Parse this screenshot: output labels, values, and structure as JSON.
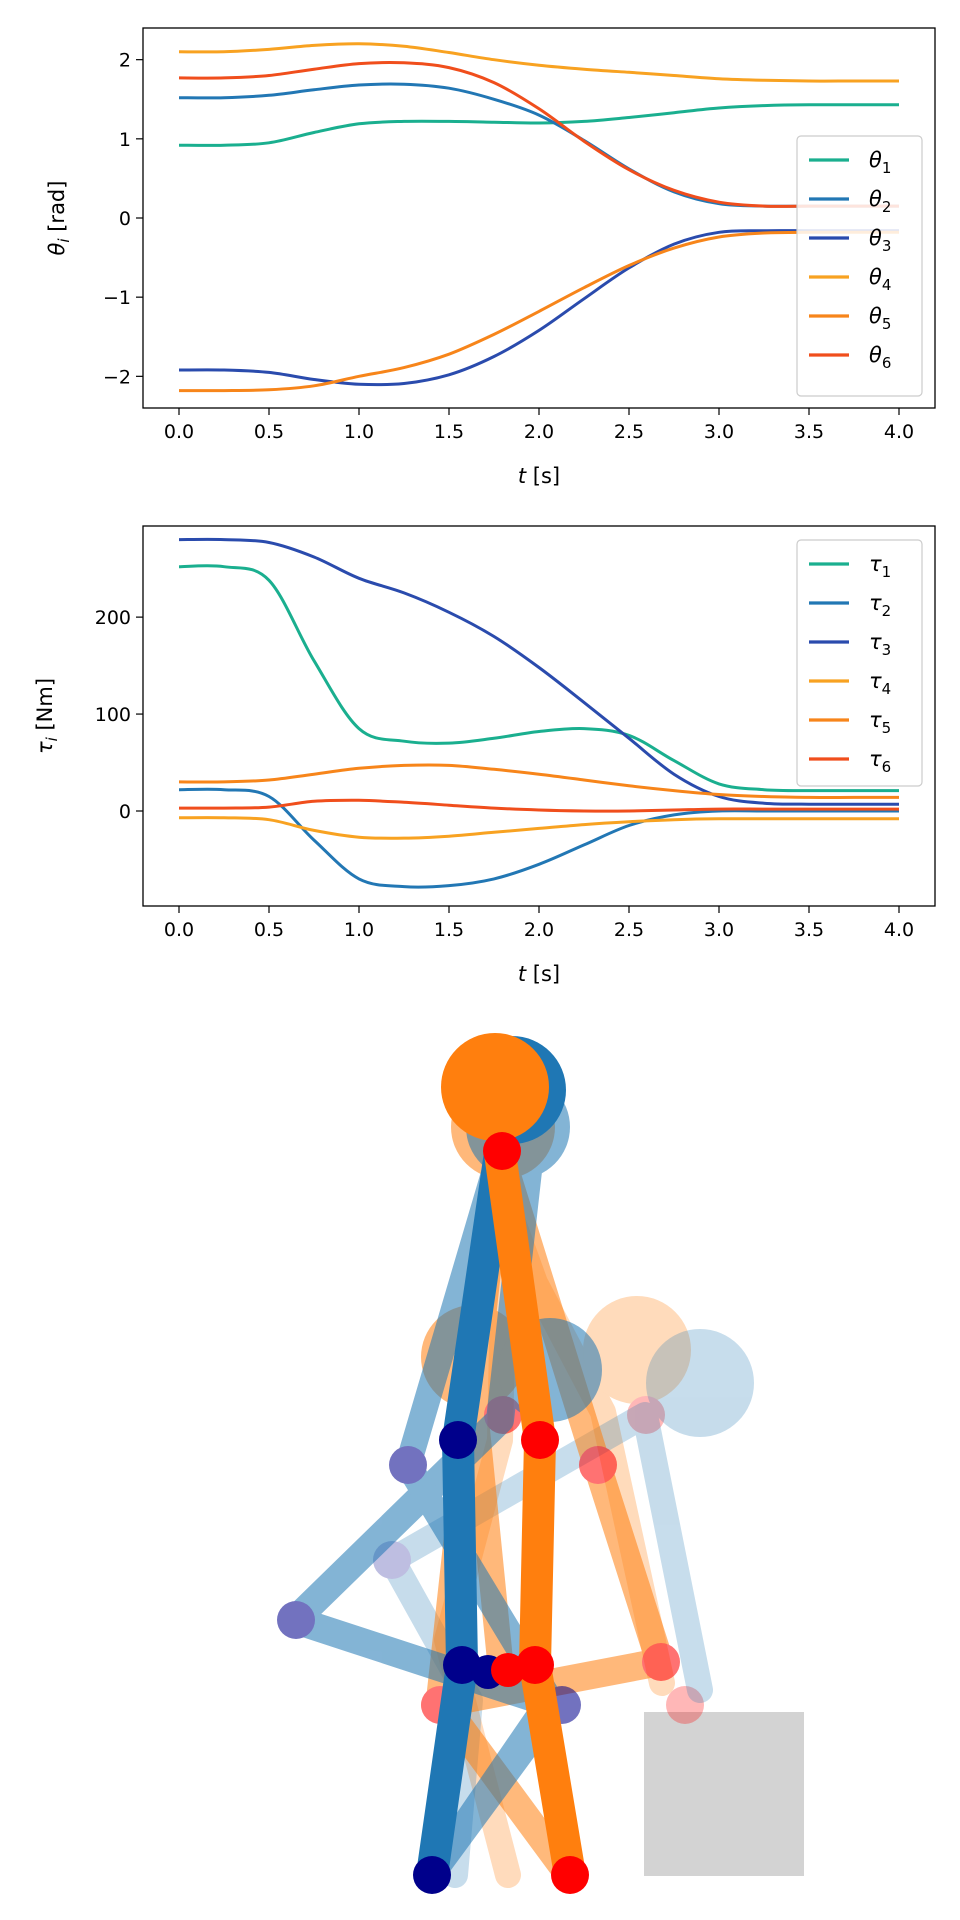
{
  "chart_data": [
    {
      "type": "line",
      "xlabel_var": "t",
      "xlabel_unit": " [s]",
      "ylabel_var": "θ",
      "ylabel_sub": "i",
      "ylabel_unit": " [rad]",
      "xlim": [
        -0.2,
        4.2
      ],
      "ylim": [
        -2.4,
        2.4
      ],
      "xticks": [
        0.0,
        0.5,
        1.0,
        1.5,
        2.0,
        2.5,
        3.0,
        3.5,
        4.0
      ],
      "xtick_labels": [
        "0.0",
        "0.5",
        "1.0",
        "1.5",
        "2.0",
        "2.5",
        "3.0",
        "3.5",
        "4.0"
      ],
      "yticks": [
        -2,
        -1,
        0,
        1,
        2
      ],
      "ytick_labels": [
        "−2",
        "−1",
        "0",
        "1",
        "2"
      ],
      "legend_position": "lower-right",
      "x": [
        0.0,
        0.25,
        0.5,
        0.75,
        1.0,
        1.25,
        1.5,
        1.75,
        2.0,
        2.25,
        2.5,
        2.75,
        3.0,
        3.25,
        3.5,
        3.75,
        4.0
      ],
      "series": [
        {
          "name": "θ",
          "sub": "1",
          "color": "#1aaf8f",
          "values": [
            0.92,
            0.92,
            0.95,
            1.08,
            1.19,
            1.22,
            1.22,
            1.21,
            1.2,
            1.22,
            1.27,
            1.33,
            1.39,
            1.42,
            1.43,
            1.43,
            1.43
          ]
        },
        {
          "name": "θ",
          "sub": "2",
          "color": "#2277b4",
          "values": [
            1.52,
            1.52,
            1.55,
            1.62,
            1.68,
            1.69,
            1.64,
            1.5,
            1.3,
            0.98,
            0.62,
            0.33,
            0.18,
            0.15,
            0.15,
            0.15,
            0.15
          ]
        },
        {
          "name": "θ",
          "sub": "3",
          "color": "#2a4bad",
          "values": [
            -1.92,
            -1.92,
            -1.95,
            -2.04,
            -2.1,
            -2.09,
            -1.98,
            -1.75,
            -1.42,
            -1.02,
            -0.63,
            -0.33,
            -0.18,
            -0.16,
            -0.16,
            -0.16,
            -0.16
          ]
        },
        {
          "name": "θ",
          "sub": "4",
          "color": "#f8a221",
          "values": [
            2.1,
            2.1,
            2.13,
            2.18,
            2.2,
            2.17,
            2.09,
            2.0,
            1.93,
            1.88,
            1.84,
            1.8,
            1.76,
            1.74,
            1.73,
            1.73,
            1.73
          ]
        },
        {
          "name": "θ",
          "sub": "5",
          "color": "#f7851a",
          "values": [
            -2.18,
            -2.18,
            -2.17,
            -2.12,
            -2.0,
            -1.89,
            -1.72,
            -1.47,
            -1.18,
            -0.88,
            -0.6,
            -0.38,
            -0.24,
            -0.19,
            -0.18,
            -0.18,
            -0.18
          ]
        },
        {
          "name": "θ",
          "sub": "6",
          "color": "#f04e1c",
          "values": [
            1.77,
            1.77,
            1.8,
            1.88,
            1.95,
            1.96,
            1.9,
            1.71,
            1.38,
            0.97,
            0.61,
            0.35,
            0.2,
            0.15,
            0.15,
            0.15,
            0.15
          ]
        }
      ]
    },
    {
      "type": "line",
      "xlabel_var": "t",
      "xlabel_unit": " [s]",
      "ylabel_var": "τ",
      "ylabel_sub": "i",
      "ylabel_unit": " [Nm]",
      "xlim": [
        -0.2,
        4.2
      ],
      "ylim": [
        -98,
        294
      ],
      "xticks": [
        0.0,
        0.5,
        1.0,
        1.5,
        2.0,
        2.5,
        3.0,
        3.5,
        4.0
      ],
      "xtick_labels": [
        "0.0",
        "0.5",
        "1.0",
        "1.5",
        "2.0",
        "2.5",
        "3.0",
        "3.5",
        "4.0"
      ],
      "yticks": [
        0,
        100,
        200
      ],
      "ytick_labels": [
        "0",
        "100",
        "200"
      ],
      "legend_position": "upper-right",
      "x": [
        0.0,
        0.25,
        0.5,
        0.75,
        1.0,
        1.25,
        1.5,
        1.75,
        2.0,
        2.25,
        2.5,
        2.75,
        3.0,
        3.25,
        3.5,
        3.75,
        4.0
      ],
      "series": [
        {
          "name": "τ",
          "sub": "1",
          "color": "#1aaf8f",
          "values": [
            252,
            252,
            238,
            155,
            85,
            72,
            70,
            75,
            82,
            85,
            78,
            52,
            28,
            22,
            21,
            21,
            21
          ]
        },
        {
          "name": "τ",
          "sub": "2",
          "color": "#2277b4",
          "values": [
            22,
            22,
            15,
            -30,
            -70,
            -78,
            -77,
            -70,
            -55,
            -35,
            -15,
            -4,
            0,
            0,
            0,
            0,
            0
          ]
        },
        {
          "name": "τ",
          "sub": "3",
          "color": "#2a4bad",
          "values": [
            280,
            280,
            277,
            262,
            240,
            225,
            205,
            180,
            148,
            112,
            75,
            38,
            15,
            8,
            7,
            7,
            7
          ]
        },
        {
          "name": "τ",
          "sub": "4",
          "color": "#f8a221",
          "values": [
            -7,
            -7,
            -9,
            -20,
            -27,
            -28,
            -26,
            -22,
            -18,
            -14,
            -11,
            -9,
            -8,
            -8,
            -8,
            -8,
            -8
          ]
        },
        {
          "name": "τ",
          "sub": "5",
          "color": "#f7851a",
          "values": [
            30,
            30,
            32,
            38,
            44,
            47,
            47,
            43,
            38,
            32,
            26,
            21,
            17,
            15,
            14,
            14,
            14
          ]
        },
        {
          "name": "τ",
          "sub": "6",
          "color": "#f04e1c",
          "values": [
            3,
            3,
            4,
            10,
            11,
            9,
            6,
            3,
            1,
            0,
            0,
            1,
            2,
            2,
            2,
            2,
            2
          ]
        }
      ]
    }
  ],
  "diagram": {
    "colors": {
      "blue_link": "#1f77b4",
      "blue_joint": "#00008b",
      "orange_link": "#ff7f0e",
      "orange_joint": "#ff0000",
      "obstacle": "#d3d3d3"
    }
  }
}
